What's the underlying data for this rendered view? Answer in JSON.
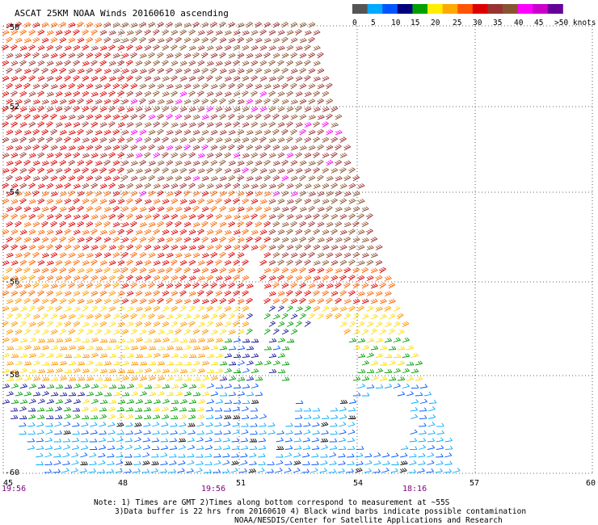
{
  "title": "ASCAT 25KM NOAA Winds 20160610 ascending",
  "legend": {
    "colors": [
      "#555555",
      "#00aaff",
      "#0055ff",
      "#00007f",
      "#00a000",
      "#ffee00",
      "#ffaa00",
      "#ff5500",
      "#dd0000",
      "#993333",
      "#885533",
      "#ff00ff",
      "#cc00cc",
      "#660099"
    ],
    "labels": [
      "0",
      "5",
      "10",
      "15",
      "20",
      "25",
      "30",
      "35",
      "40",
      "45",
      ">50 knots"
    ]
  },
  "axes": {
    "lon_ticks": [
      "45",
      "48",
      "51",
      "54",
      "57",
      "60"
    ],
    "lat_ticks": [
      "-50",
      "-52",
      "-54",
      "-56",
      "-58",
      "-60"
    ],
    "lon_range": [
      45,
      60
    ],
    "lat_range": [
      -60,
      -50
    ]
  },
  "times": [
    "19:56",
    "19:56",
    "18:16"
  ],
  "notes": [
    "Note: 1) Times are GMT 2)Times along bottom correspond to measurement at ~55S",
    "3)Data buffer is 22 hrs from 20160610 4) Black wind barbs indicate possible contamination",
    "NOAA/NESDIS/Center for Satellite Applications and Research"
  ]
}
